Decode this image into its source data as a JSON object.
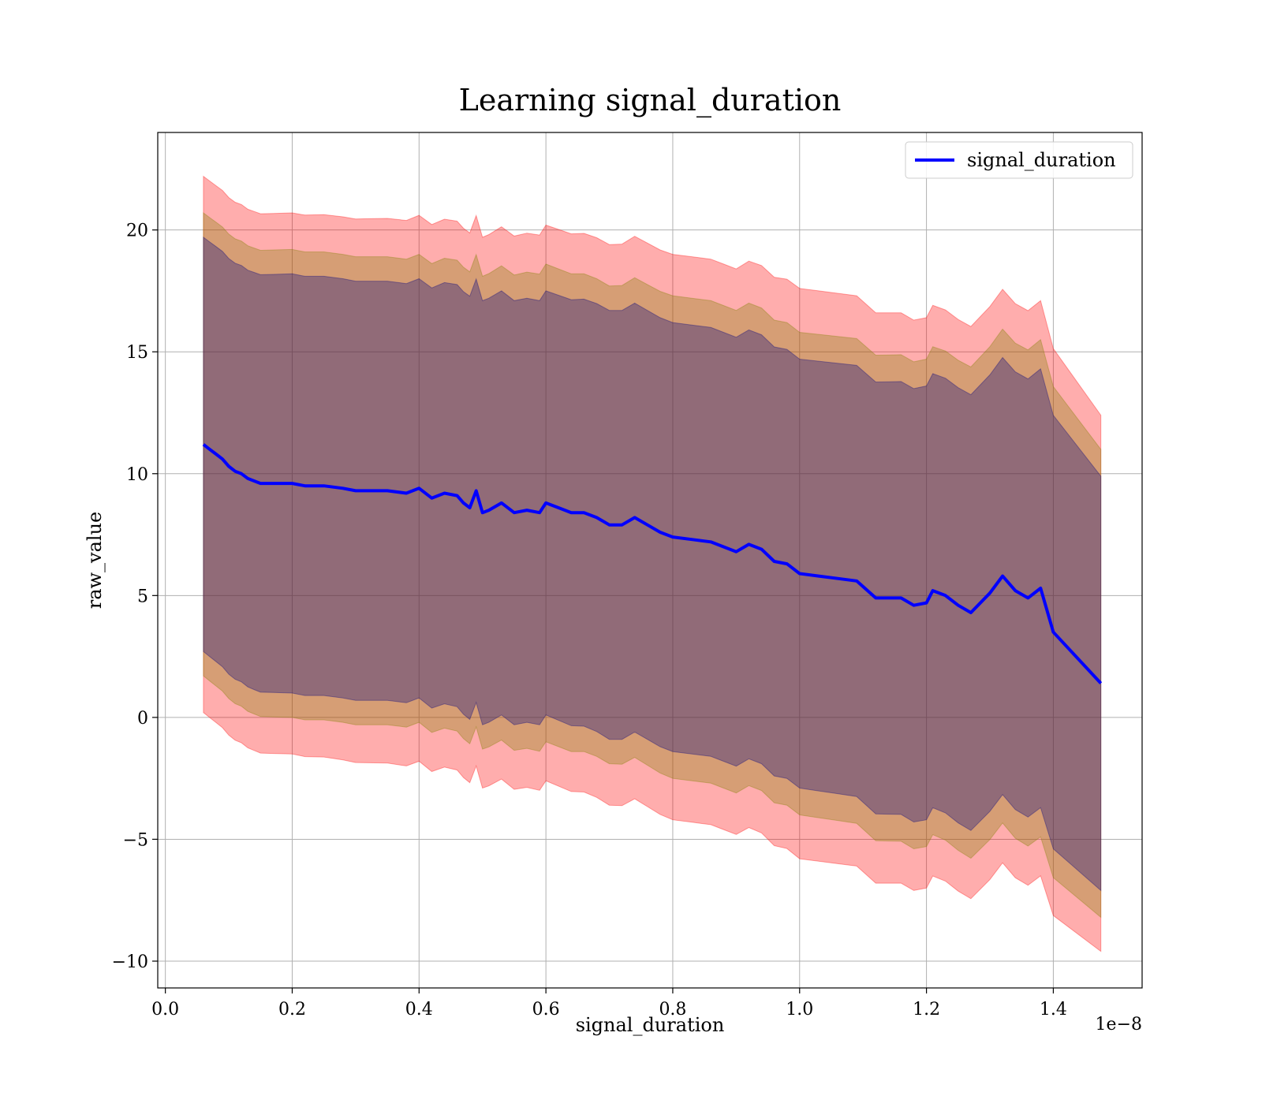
{
  "chart_data": {
    "type": "line",
    "title": "Learning signal_duration",
    "xlabel": "signal_duration",
    "ylabel": "raw_value",
    "x_offset_text": "1e−8",
    "xlim": [
      -1.2e-10,
      1.54e-08
    ],
    "ylim": [
      -11.1,
      24.0
    ],
    "x_ticks": [
      0.0,
      2e-09,
      4e-09,
      6e-09,
      8e-09,
      1e-08,
      1.2e-08,
      1.4e-08
    ],
    "x_tick_labels": [
      "0.0",
      "0.2",
      "0.4",
      "0.6",
      "0.8",
      "1.0",
      "1.2",
      "1.4"
    ],
    "y_ticks": [
      -10,
      -5,
      0,
      5,
      10,
      15,
      20
    ],
    "y_tick_labels": [
      "−10",
      "−5",
      "0",
      "5",
      "10",
      "15",
      "20"
    ],
    "grid": true,
    "legend_position": "top-right",
    "series": [
      {
        "name": "signal_duration",
        "color": "#0000ff",
        "x": [
          6e-10,
          7e-10,
          8e-10,
          9e-10,
          1e-09,
          1.1e-09,
          1.2e-09,
          1.3e-09,
          1.4e-09,
          1.5e-09,
          1.7e-09,
          2e-09,
          2.2e-09,
          2.5e-09,
          2.8e-09,
          3e-09,
          3.2e-09,
          3.5e-09,
          3.8e-09,
          4e-09,
          4.2e-09,
          4.4e-09,
          4.6e-09,
          4.7e-09,
          4.8e-09,
          4.9e-09,
          5e-09,
          5.1e-09,
          5.3e-09,
          5.5e-09,
          5.7e-09,
          5.9e-09,
          6e-09,
          6.2e-09,
          6.4e-09,
          6.6e-09,
          6.8e-09,
          7e-09,
          7.2e-09,
          7.4e-09,
          7.6e-09,
          7.8e-09,
          8e-09,
          8.3e-09,
          8.6e-09,
          8.8e-09,
          9e-09,
          9.2e-09,
          9.4e-09,
          9.6e-09,
          9.8e-09,
          1e-08,
          1.03e-08,
          1.06e-08,
          1.09e-08,
          1.12e-08,
          1.14e-08,
          1.16e-08,
          1.18e-08,
          1.2e-08,
          1.21e-08,
          1.23e-08,
          1.25e-08,
          1.27e-08,
          1.3e-08,
          1.32e-08,
          1.34e-08,
          1.36e-08,
          1.38e-08,
          1.4e-08,
          1.475e-08
        ],
        "y": [
          11.2,
          11.0,
          10.8,
          10.6,
          10.3,
          10.1,
          10.0,
          9.8,
          9.7,
          9.6,
          9.6,
          9.6,
          9.5,
          9.5,
          9.4,
          9.3,
          9.3,
          9.3,
          9.2,
          9.4,
          9.0,
          9.2,
          9.1,
          8.8,
          8.6,
          9.3,
          8.4,
          8.5,
          8.8,
          8.4,
          8.5,
          8.4,
          8.8,
          8.6,
          8.4,
          8.4,
          8.2,
          7.9,
          7.9,
          8.2,
          7.9,
          7.6,
          7.4,
          7.3,
          7.2,
          7.0,
          6.8,
          7.1,
          6.9,
          6.4,
          6.3,
          5.9,
          5.8,
          5.7,
          5.6,
          4.9,
          4.9,
          4.9,
          4.6,
          4.7,
          5.2,
          5.0,
          4.6,
          4.3,
          5.1,
          5.8,
          5.2,
          4.9,
          5.3,
          3.5,
          1.4
        ]
      }
    ],
    "bands": [
      {
        "color": "#ff0000",
        "opacity": 0.32,
        "half_width": [
          11.0,
          11.1,
          11.2,
          11.3,
          11.4,
          11.5,
          11.6,
          11.6,
          11.7,
          11.7,
          11.8,
          11.0
        ]
      },
      {
        "color": "#808000",
        "opacity": 0.32,
        "half_width": [
          9.5,
          9.6,
          9.6,
          9.7,
          9.8,
          9.8,
          9.9,
          9.9,
          9.9,
          10.0,
          10.2,
          9.6
        ]
      },
      {
        "color": "#000080",
        "opacity": 0.32,
        "half_width": [
          8.5,
          8.6,
          8.6,
          8.7,
          8.7,
          8.8,
          8.8,
          8.8,
          8.8,
          8.9,
          9.0,
          8.5
        ]
      }
    ],
    "band_x": [
      6e-10,
      2e-09,
      4e-09,
      5e-09,
      6e-09,
      7e-09,
      8e-09,
      9e-09,
      1e-08,
      1.2e-08,
      1.38e-08,
      1.475e-08
    ]
  }
}
